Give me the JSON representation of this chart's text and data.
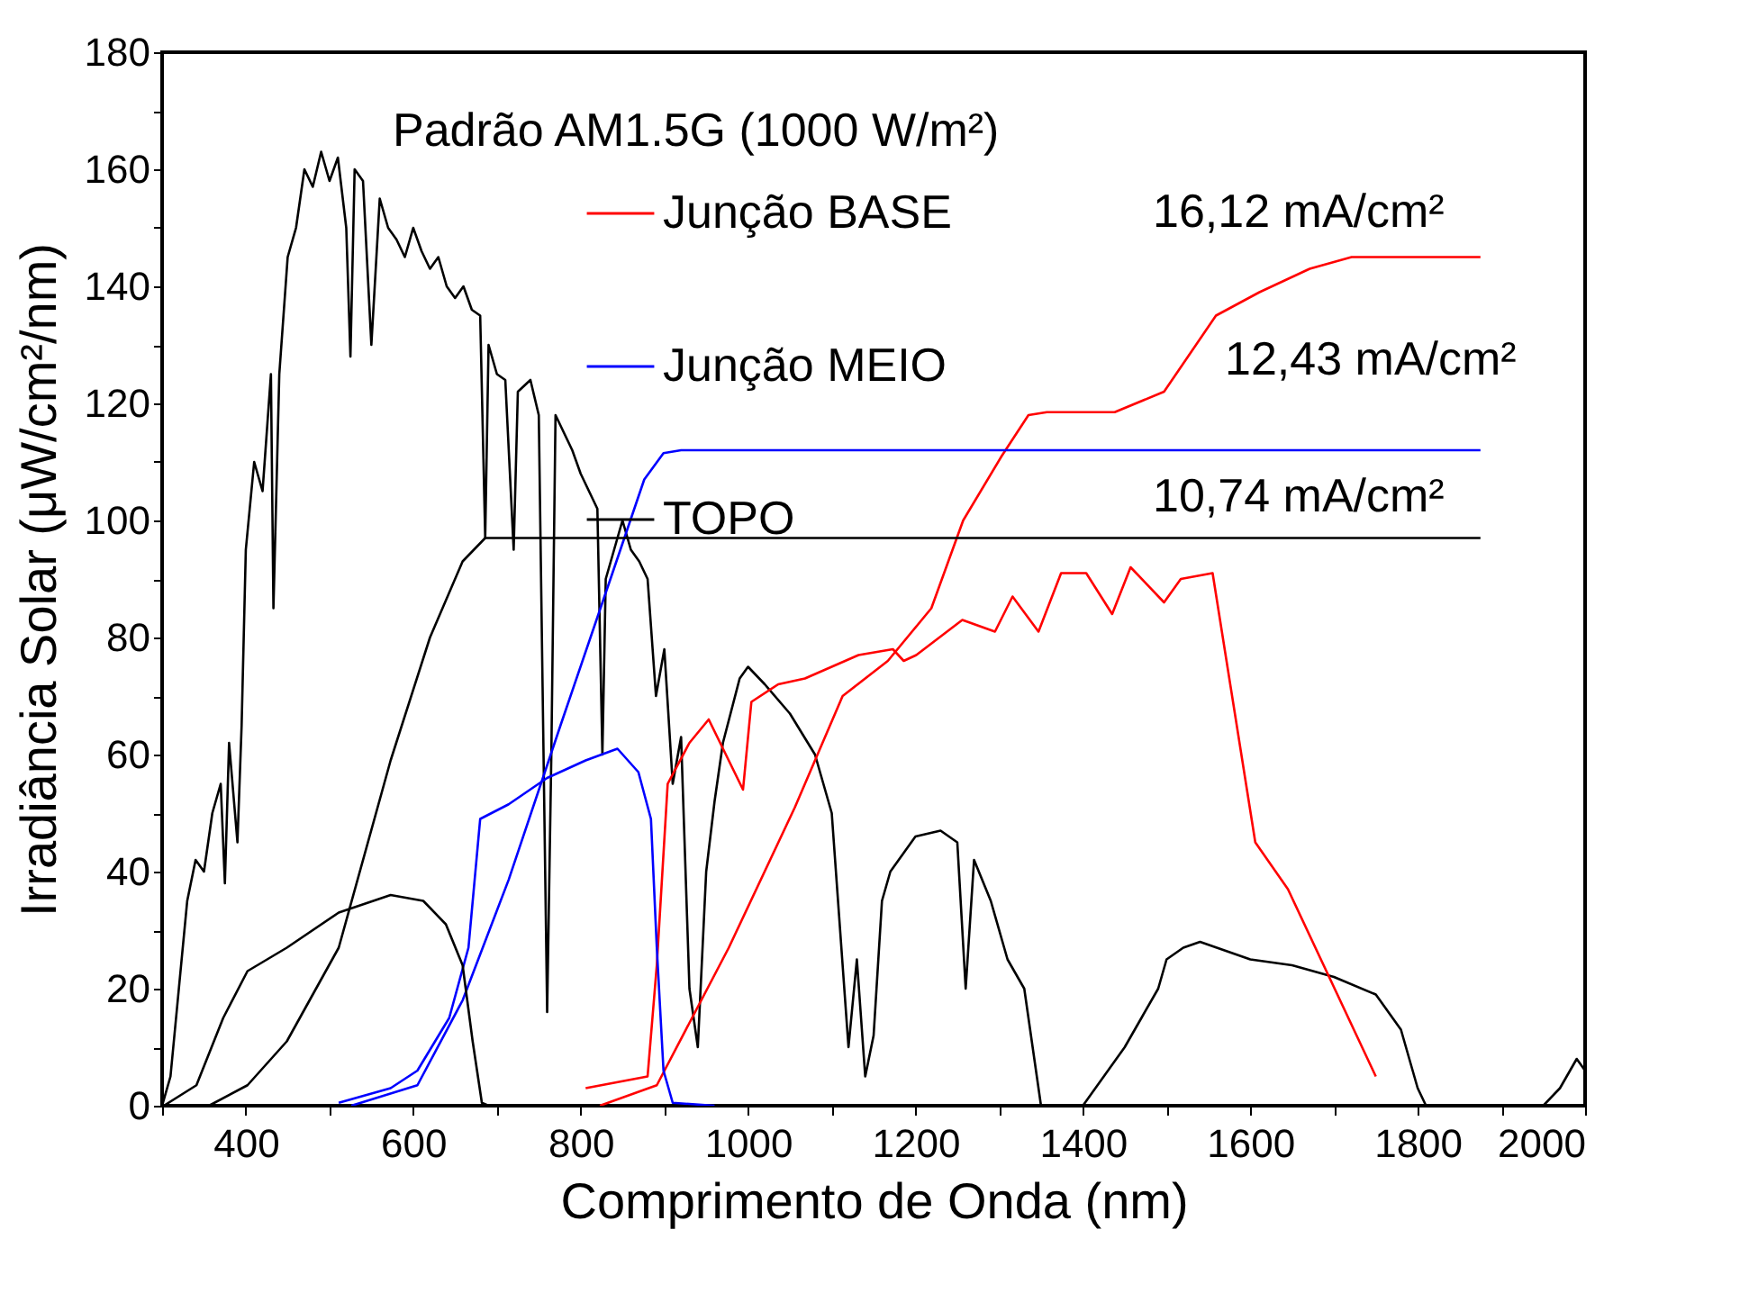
{
  "chart_data": {
    "type": "line",
    "xlabel": "Comprimento de Onda (nm)",
    "ylabel": "Irradiância Solar (μW/cm²/nm)",
    "annotations": [
      "Padrão AM1.5G (1000 W/m²)",
      "16,12 mA/cm²",
      "12,43 mA/cm²",
      "10,74 mA/cm²"
    ],
    "xlim": [
      300,
      2000
    ],
    "ylim": [
      0,
      180
    ],
    "xticks": [
      {
        "value": 300,
        "label": null
      },
      400,
      {
        "value": 500,
        "label": null
      },
      600,
      {
        "value": 700,
        "label": null
      },
      800,
      {
        "value": 900,
        "label": null
      },
      1000,
      {
        "value": 1100,
        "label": null
      },
      1200,
      {
        "value": 1300,
        "label": null
      },
      1400,
      {
        "value": 1500,
        "label": null
      },
      1600,
      {
        "value": 1700,
        "label": null
      },
      1800,
      {
        "value": 1900,
        "label": null
      },
      2000
    ],
    "yticks": [
      0,
      {
        "value": 10,
        "label": null
      },
      20,
      {
        "value": 30,
        "label": null
      },
      40,
      {
        "value": 50,
        "label": null
      },
      60,
      {
        "value": 70,
        "label": null
      },
      80,
      {
        "value": 90,
        "label": null
      },
      100,
      {
        "value": 110,
        "label": null
      },
      120,
      {
        "value": 130,
        "label": null
      },
      140,
      {
        "value": 150,
        "label": null
      },
      160,
      {
        "value": 170,
        "label": null
      },
      180
    ],
    "grid": false,
    "legend": "top",
    "marker": "none",
    "line_style": "solid",
    "series": [
      {
        "color": "#000000",
        "x": [
          300,
          310,
          320,
          330,
          340,
          350,
          360,
          370,
          375,
          380,
          390,
          395,
          400,
          410,
          420,
          430,
          433,
          440,
          450,
          460,
          470,
          480,
          490,
          500,
          510,
          520,
          525,
          530,
          540,
          550,
          560,
          570,
          580,
          590,
          600,
          610,
          620,
          630,
          640,
          650,
          660,
          670,
          680,
          686,
          690,
          700,
          710,
          720,
          725,
          740,
          750,
          760,
          765,
          770,
          790,
          800,
          820,
          826,
          830,
          850,
          860,
          870,
          880,
          890,
          900,
          910,
          920,
          930,
          940,
          950,
          960,
          970,
          990,
          1000,
          1020,
          1050,
          1080,
          1100,
          1110,
          1120,
          1130,
          1140,
          1150,
          1160,
          1170,
          1200,
          1230,
          1250,
          1260,
          1270,
          1290,
          1310,
          1330,
          1345,
          1350,
          1400,
          1410,
          1430,
          1450,
          1470,
          1490,
          1500,
          1520,
          1540,
          1560,
          1600,
          1650,
          1700,
          1750,
          1780,
          1800,
          1810,
          1950,
          1970,
          1990,
          2000
        ],
        "values": [
          0,
          5,
          20,
          35,
          42,
          40,
          50,
          55,
          38,
          62,
          45,
          65,
          95,
          110,
          105,
          125,
          85,
          125,
          145,
          150,
          160,
          157,
          163,
          158,
          162,
          150,
          128,
          160,
          158,
          130,
          155,
          150,
          148,
          145,
          150,
          146,
          143,
          145,
          140,
          138,
          140,
          136,
          135,
          97,
          130,
          125,
          124,
          95,
          122,
          124,
          118,
          16,
          60,
          118,
          112,
          108,
          102,
          60,
          90,
          100,
          95,
          93,
          90,
          70,
          78,
          55,
          63,
          20,
          10,
          40,
          52,
          62,
          73,
          75,
          72,
          67,
          60,
          50,
          30,
          10,
          25,
          5,
          12,
          35,
          40,
          46,
          47,
          45,
          20,
          42,
          35,
          25,
          20,
          5,
          0,
          0,
          2,
          6,
          10,
          15,
          20,
          25,
          27,
          28,
          27,
          25,
          24,
          22,
          19,
          13,
          3,
          0,
          0,
          3,
          8,
          6
        ]
      },
      {
        "name": "Junção BASE",
        "color": "#ff0000",
        "x": [
          823,
          891,
          977,
          1056,
          1113,
          1167,
          1219,
          1257,
          1303,
          1335,
          1357,
          1438,
          1497,
          1559,
          1611,
          1671,
          1721,
          1875
        ],
        "values": [
          0,
          3.5,
          27,
          51,
          70,
          76,
          85,
          100,
          111,
          118,
          118.5,
          118.5,
          122,
          135,
          139,
          143,
          145,
          145
        ]
      },
      {
        "color": "#ff0000",
        "x": [
          806,
          880,
          891,
          904,
          930,
          953,
          994,
          1004,
          1036,
          1068,
          1132,
          1173,
          1186,
          1201,
          1256,
          1295,
          1316,
          1347,
          1374,
          1404,
          1435,
          1457,
          1497,
          1517,
          1555,
          1606,
          1645,
          1750
        ],
        "values": [
          3,
          5,
          24,
          55,
          62,
          66,
          54,
          69,
          72,
          73,
          77,
          78,
          76,
          77,
          83,
          81,
          87,
          81,
          91,
          91,
          84,
          92,
          86,
          90,
          91,
          45,
          37,
          5
        ]
      },
      {
        "name": "Junção MEIO",
        "color": "#0000ff",
        "x": [
          526,
          605,
          659,
          714,
          776,
          838,
          876,
          899,
          920,
          1875
        ],
        "values": [
          0,
          3.5,
          18,
          38.6,
          65,
          91,
          107,
          111.5,
          112,
          112
        ]
      },
      {
        "color": "#0000ff",
        "x": [
          511,
          573,
          605,
          643,
          666,
          680,
          714,
          760,
          806,
          844,
          869,
          884,
          891,
          899,
          910,
          960
        ],
        "values": [
          0.5,
          3,
          6,
          15,
          27,
          49,
          51.5,
          56,
          59,
          61,
          57,
          49,
          27,
          6,
          0.5,
          0
        ]
      },
      {
        "name": "TOPO",
        "color": "#000000",
        "x": [
          356,
          402,
          449,
          511,
          573,
          620,
          659,
          686,
          1875
        ],
        "values": [
          0,
          3.5,
          11,
          27,
          59,
          80,
          93,
          97,
          97
        ]
      },
      {
        "color": "#000000",
        "x": [
          302,
          341,
          373,
          402,
          449,
          511,
          573,
          612,
          639,
          659,
          671,
          682,
          690
        ],
        "values": [
          0,
          3.5,
          15,
          23,
          27,
          33,
          36,
          35,
          31,
          24,
          11,
          0.5,
          0
        ]
      }
    ]
  }
}
